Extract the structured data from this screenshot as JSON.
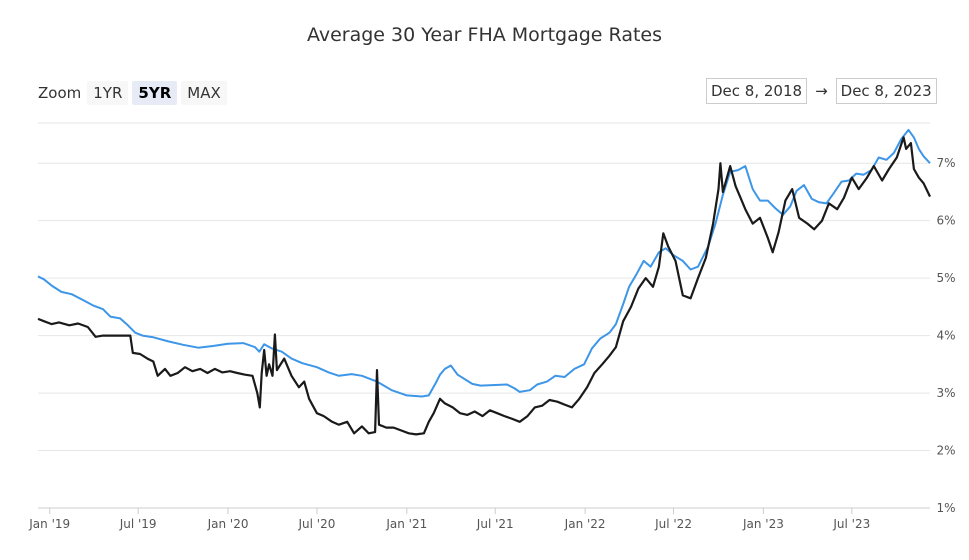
{
  "zoom": {
    "label": "Zoom",
    "options": [
      "1YR",
      "5YR",
      "MAX"
    ],
    "selected": "5YR"
  },
  "range": {
    "from": "Dec 8, 2018",
    "arrow": "→",
    "to": "Dec 8, 2023"
  },
  "colors": {
    "series_blue": "#3d96e8",
    "series_black": "#1a1a1a",
    "grid": "#e6e6e6"
  },
  "chart_data": {
    "type": "line",
    "title": "Average 30 Year FHA Mortgage Rates",
    "xlabel": "",
    "ylabel": "",
    "ylim": [
      1,
      7.7
    ],
    "y_ticks": [
      1,
      2,
      3,
      4,
      5,
      6,
      7
    ],
    "y_tick_labels": [
      "1%",
      "2%",
      "3%",
      "4%",
      "5%",
      "6%",
      "7%"
    ],
    "x_range": [
      "2018-12-08",
      "2023-12-08"
    ],
    "x_ticks": [
      "2019-01-01",
      "2019-07-01",
      "2020-01-01",
      "2020-07-01",
      "2021-01-01",
      "2021-07-01",
      "2022-01-01",
      "2022-07-01",
      "2023-01-01",
      "2023-07-01"
    ],
    "x_tick_labels": [
      "Jan '19",
      "Jul '19",
      "Jan '20",
      "Jul '20",
      "Jan '21",
      "Jul '21",
      "Jan '22",
      "Jul '22",
      "Jan '23",
      "Jul '23"
    ],
    "grid": true,
    "legend": "none",
    "series": [
      {
        "points": [
          [
            "2018-12-08",
            5.03
          ],
          [
            "2018-12-20",
            4.98
          ],
          [
            "2019-01-05",
            4.87
          ],
          [
            "2019-01-25",
            4.76
          ],
          [
            "2019-02-15",
            4.72
          ],
          [
            "2019-03-10",
            4.62
          ],
          [
            "2019-04-01",
            4.52
          ],
          [
            "2019-04-20",
            4.46
          ],
          [
            "2019-05-05",
            4.33
          ],
          [
            "2019-05-25",
            4.3
          ],
          [
            "2019-06-10",
            4.18
          ],
          [
            "2019-06-25",
            4.05
          ],
          [
            "2019-07-10",
            4.0
          ],
          [
            "2019-08-01",
            3.97
          ],
          [
            "2019-09-01",
            3.9
          ],
          [
            "2019-10-01",
            3.84
          ],
          [
            "2019-11-01",
            3.79
          ],
          [
            "2019-12-01",
            3.82
          ],
          [
            "2020-01-01",
            3.86
          ],
          [
            "2020-02-01",
            3.87
          ],
          [
            "2020-02-25",
            3.8
          ],
          [
            "2020-03-05",
            3.72
          ],
          [
            "2020-03-15",
            3.85
          ],
          [
            "2020-03-30",
            3.78
          ],
          [
            "2020-04-20",
            3.72
          ],
          [
            "2020-05-10",
            3.6
          ],
          [
            "2020-06-01",
            3.52
          ],
          [
            "2020-07-01",
            3.45
          ],
          [
            "2020-07-25",
            3.36
          ],
          [
            "2020-08-15",
            3.3
          ],
          [
            "2020-09-10",
            3.33
          ],
          [
            "2020-10-01",
            3.3
          ],
          [
            "2020-11-01",
            3.2
          ],
          [
            "2020-11-15",
            3.13
          ],
          [
            "2020-12-01",
            3.05
          ],
          [
            "2021-01-01",
            2.96
          ],
          [
            "2021-02-01",
            2.94
          ],
          [
            "2021-02-15",
            2.96
          ],
          [
            "2021-03-01",
            3.17
          ],
          [
            "2021-03-10",
            3.32
          ],
          [
            "2021-03-20",
            3.42
          ],
          [
            "2021-04-01",
            3.48
          ],
          [
            "2021-04-15",
            3.32
          ],
          [
            "2021-05-15",
            3.16
          ],
          [
            "2021-06-01",
            3.13
          ],
          [
            "2021-07-01",
            3.14
          ],
          [
            "2021-07-25",
            3.15
          ],
          [
            "2021-08-10",
            3.08
          ],
          [
            "2021-08-20",
            3.02
          ],
          [
            "2021-09-10",
            3.05
          ],
          [
            "2021-09-25",
            3.15
          ],
          [
            "2021-10-15",
            3.2
          ],
          [
            "2021-11-01",
            3.3
          ],
          [
            "2021-11-20",
            3.28
          ],
          [
            "2021-12-10",
            3.42
          ],
          [
            "2021-12-30",
            3.5
          ],
          [
            "2022-01-15",
            3.78
          ],
          [
            "2022-02-01",
            3.95
          ],
          [
            "2022-02-20",
            4.05
          ],
          [
            "2022-03-05",
            4.2
          ],
          [
            "2022-03-20",
            4.55
          ],
          [
            "2022-04-01",
            4.85
          ],
          [
            "2022-04-15",
            5.05
          ],
          [
            "2022-05-01",
            5.3
          ],
          [
            "2022-05-15",
            5.2
          ],
          [
            "2022-06-01",
            5.45
          ],
          [
            "2022-06-15",
            5.52
          ],
          [
            "2022-07-01",
            5.4
          ],
          [
            "2022-07-20",
            5.3
          ],
          [
            "2022-08-05",
            5.15
          ],
          [
            "2022-08-20",
            5.2
          ],
          [
            "2022-09-10",
            5.55
          ],
          [
            "2022-09-25",
            5.95
          ],
          [
            "2022-10-10",
            6.45
          ],
          [
            "2022-10-25",
            6.85
          ],
          [
            "2022-11-10",
            6.88
          ],
          [
            "2022-11-25",
            6.95
          ],
          [
            "2022-12-10",
            6.55
          ],
          [
            "2022-12-25",
            6.35
          ],
          [
            "2023-01-10",
            6.35
          ],
          [
            "2023-01-25",
            6.22
          ],
          [
            "2023-02-10",
            6.1
          ],
          [
            "2023-02-25",
            6.25
          ],
          [
            "2023-03-10",
            6.52
          ],
          [
            "2023-03-25",
            6.62
          ],
          [
            "2023-04-10",
            6.38
          ],
          [
            "2023-04-25",
            6.32
          ],
          [
            "2023-05-10",
            6.3
          ],
          [
            "2023-05-25",
            6.48
          ],
          [
            "2023-06-10",
            6.68
          ],
          [
            "2023-06-25",
            6.7
          ],
          [
            "2023-07-10",
            6.82
          ],
          [
            "2023-07-25",
            6.8
          ],
          [
            "2023-08-10",
            6.88
          ],
          [
            "2023-08-25",
            7.1
          ],
          [
            "2023-09-10",
            7.06
          ],
          [
            "2023-09-25",
            7.18
          ],
          [
            "2023-10-10",
            7.42
          ],
          [
            "2023-10-25",
            7.58
          ],
          [
            "2023-11-05",
            7.45
          ],
          [
            "2023-11-15",
            7.25
          ],
          [
            "2023-11-25",
            7.12
          ],
          [
            "2023-12-08",
            7.0
          ]
        ]
      },
      {
        "points": [
          [
            "2018-12-08",
            4.29
          ],
          [
            "2018-12-20",
            4.25
          ],
          [
            "2019-01-05",
            4.2
          ],
          [
            "2019-01-20",
            4.23
          ],
          [
            "2019-02-10",
            4.18
          ],
          [
            "2019-02-28",
            4.21
          ],
          [
            "2019-03-20",
            4.15
          ],
          [
            "2019-04-05",
            3.98
          ],
          [
            "2019-04-20",
            4.0
          ],
          [
            "2019-05-10",
            4.0
          ],
          [
            "2019-06-01",
            4.0
          ],
          [
            "2019-06-15",
            4.0
          ],
          [
            "2019-06-20",
            3.7
          ],
          [
            "2019-07-05",
            3.68
          ],
          [
            "2019-07-20",
            3.6
          ],
          [
            "2019-08-01",
            3.55
          ],
          [
            "2019-08-10",
            3.3
          ],
          [
            "2019-08-25",
            3.42
          ],
          [
            "2019-09-05",
            3.3
          ],
          [
            "2019-09-20",
            3.35
          ],
          [
            "2019-10-05",
            3.45
          ],
          [
            "2019-10-20",
            3.38
          ],
          [
            "2019-11-05",
            3.42
          ],
          [
            "2019-11-20",
            3.35
          ],
          [
            "2019-12-05",
            3.42
          ],
          [
            "2019-12-20",
            3.36
          ],
          [
            "2020-01-05",
            3.38
          ],
          [
            "2020-01-20",
            3.35
          ],
          [
            "2020-02-05",
            3.32
          ],
          [
            "2020-02-20",
            3.3
          ],
          [
            "2020-03-01",
            3.0
          ],
          [
            "2020-03-06",
            2.75
          ],
          [
            "2020-03-10",
            3.35
          ],
          [
            "2020-03-15",
            3.75
          ],
          [
            "2020-03-20",
            3.3
          ],
          [
            "2020-03-25",
            3.5
          ],
          [
            "2020-04-01",
            3.3
          ],
          [
            "2020-04-06",
            4.02
          ],
          [
            "2020-04-10",
            3.4
          ],
          [
            "2020-04-25",
            3.6
          ],
          [
            "2020-05-10",
            3.3
          ],
          [
            "2020-05-25",
            3.1
          ],
          [
            "2020-06-05",
            3.2
          ],
          [
            "2020-06-15",
            2.9
          ],
          [
            "2020-07-01",
            2.65
          ],
          [
            "2020-07-15",
            2.6
          ],
          [
            "2020-08-01",
            2.5
          ],
          [
            "2020-08-15",
            2.45
          ],
          [
            "2020-09-01",
            2.5
          ],
          [
            "2020-09-15",
            2.3
          ],
          [
            "2020-10-01",
            2.42
          ],
          [
            "2020-10-15",
            2.3
          ],
          [
            "2020-10-28",
            2.32
          ],
          [
            "2020-11-01",
            3.4
          ],
          [
            "2020-11-05",
            2.45
          ],
          [
            "2020-11-20",
            2.4
          ],
          [
            "2020-12-05",
            2.4
          ],
          [
            "2020-12-20",
            2.35
          ],
          [
            "2021-01-05",
            2.3
          ],
          [
            "2021-01-20",
            2.28
          ],
          [
            "2021-02-05",
            2.3
          ],
          [
            "2021-02-15",
            2.5
          ],
          [
            "2021-02-25",
            2.65
          ],
          [
            "2021-03-10",
            2.9
          ],
          [
            "2021-03-20",
            2.82
          ],
          [
            "2021-04-05",
            2.75
          ],
          [
            "2021-04-20",
            2.65
          ],
          [
            "2021-05-05",
            2.62
          ],
          [
            "2021-05-20",
            2.68
          ],
          [
            "2021-06-05",
            2.6
          ],
          [
            "2021-06-20",
            2.7
          ],
          [
            "2021-07-05",
            2.65
          ],
          [
            "2021-07-20",
            2.6
          ],
          [
            "2021-08-05",
            2.55
          ],
          [
            "2021-08-20",
            2.5
          ],
          [
            "2021-09-05",
            2.6
          ],
          [
            "2021-09-20",
            2.75
          ],
          [
            "2021-10-05",
            2.78
          ],
          [
            "2021-10-20",
            2.88
          ],
          [
            "2021-11-05",
            2.85
          ],
          [
            "2021-11-20",
            2.8
          ],
          [
            "2021-12-05",
            2.75
          ],
          [
            "2021-12-20",
            2.9
          ],
          [
            "2022-01-05",
            3.1
          ],
          [
            "2022-01-20",
            3.35
          ],
          [
            "2022-02-05",
            3.5
          ],
          [
            "2022-02-20",
            3.65
          ],
          [
            "2022-03-05",
            3.8
          ],
          [
            "2022-03-20",
            4.25
          ],
          [
            "2022-04-05",
            4.5
          ],
          [
            "2022-04-20",
            4.82
          ],
          [
            "2022-05-05",
            5.0
          ],
          [
            "2022-05-20",
            4.85
          ],
          [
            "2022-06-01",
            5.2
          ],
          [
            "2022-06-10",
            5.78
          ],
          [
            "2022-06-20",
            5.55
          ],
          [
            "2022-07-05",
            5.3
          ],
          [
            "2022-07-20",
            4.7
          ],
          [
            "2022-08-05",
            4.65
          ],
          [
            "2022-08-20",
            5.0
          ],
          [
            "2022-09-05",
            5.35
          ],
          [
            "2022-09-20",
            5.95
          ],
          [
            "2022-10-01",
            6.55
          ],
          [
            "2022-10-05",
            7.0
          ],
          [
            "2022-10-10",
            6.5
          ],
          [
            "2022-10-25",
            6.95
          ],
          [
            "2022-11-05",
            6.6
          ],
          [
            "2022-11-15",
            6.4
          ],
          [
            "2022-11-25",
            6.2
          ],
          [
            "2022-12-10",
            5.95
          ],
          [
            "2022-12-25",
            6.05
          ],
          [
            "2023-01-10",
            5.7
          ],
          [
            "2023-01-20",
            5.45
          ],
          [
            "2023-02-01",
            5.8
          ],
          [
            "2023-02-15",
            6.35
          ],
          [
            "2023-03-01",
            6.55
          ],
          [
            "2023-03-15",
            6.05
          ],
          [
            "2023-04-01",
            5.95
          ],
          [
            "2023-04-15",
            5.85
          ],
          [
            "2023-05-01",
            6.0
          ],
          [
            "2023-05-15",
            6.3
          ],
          [
            "2023-06-01",
            6.2
          ],
          [
            "2023-06-15",
            6.4
          ],
          [
            "2023-07-01",
            6.75
          ],
          [
            "2023-07-15",
            6.55
          ],
          [
            "2023-08-01",
            6.75
          ],
          [
            "2023-08-15",
            6.95
          ],
          [
            "2023-09-01",
            6.7
          ],
          [
            "2023-09-15",
            6.9
          ],
          [
            "2023-10-01",
            7.1
          ],
          [
            "2023-10-15",
            7.45
          ],
          [
            "2023-10-20",
            7.25
          ],
          [
            "2023-10-30",
            7.35
          ],
          [
            "2023-11-05",
            6.9
          ],
          [
            "2023-11-15",
            6.75
          ],
          [
            "2023-11-25",
            6.65
          ],
          [
            "2023-12-08",
            6.42
          ]
        ]
      }
    ]
  }
}
